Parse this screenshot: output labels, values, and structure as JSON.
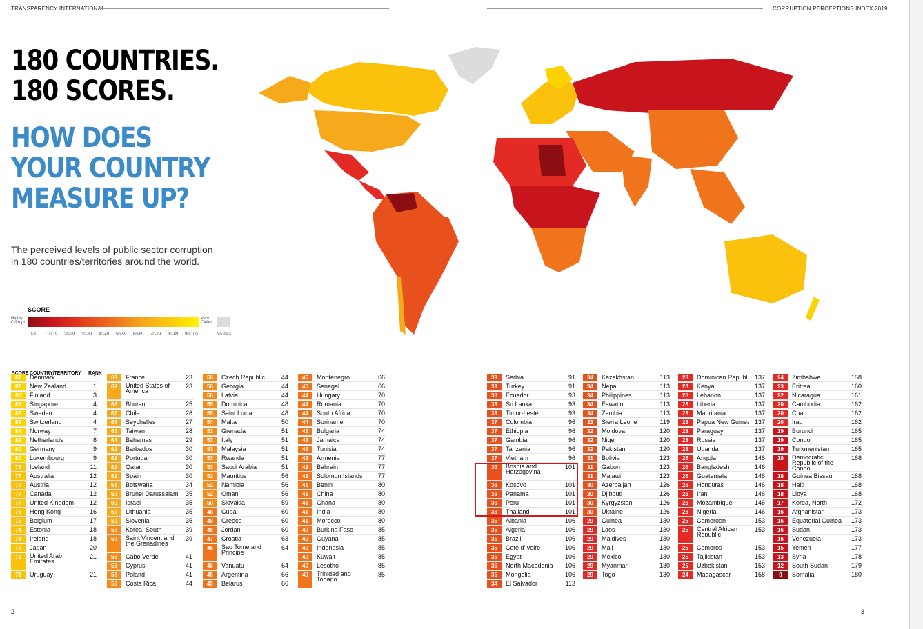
{
  "header": {
    "left": "TRANSPARENCY INTERNATIONAL",
    "right": "CORRUPTION PERCEPTIONS INDEX 2019"
  },
  "headline": {
    "line1": "180 COUNTRIES.",
    "line2": "180 SCORES."
  },
  "subhead": {
    "line1": "HOW DOES",
    "line2": "YOUR COUNTRY",
    "line3": "MEASURE UP?"
  },
  "intro": {
    "line1": "The perceived levels of public sector corruption",
    "line2": "in 180 countries/territories around the world."
  },
  "legend": {
    "title": "SCORE",
    "left_end": "Highly Corrupt",
    "right_end": "Very Clean",
    "no_data": "No data",
    "ranges": [
      "0-9",
      "10-19",
      "20-29",
      "30-39",
      "40-49",
      "50-59",
      "60-69",
      "70-79",
      "80-89",
      "90-100"
    ]
  },
  "colors": {
    "s0": "#8c0d12",
    "s1": "#c8141c",
    "s2": "#e32a24",
    "s3": "#e8511e",
    "s4": "#ef741c",
    "s5": "#f58b19",
    "s6": "#f6a91b",
    "s7": "#fbc20d",
    "s8": "#fcd200",
    "nodata": "#dcdcdc",
    "accent": "#3b8bc9"
  },
  "table_header": {
    "score": "SCORE",
    "country": "COUNTRY/TERRITORY",
    "rank": "RANK"
  },
  "columns": [
    [
      {
        "s": 87,
        "n": "Denmark",
        "r": 1
      },
      {
        "s": 87,
        "n": "New Zealand",
        "r": 1
      },
      {
        "s": 86,
        "n": "Finland",
        "r": 3
      },
      {
        "s": 85,
        "n": "Singapore",
        "r": 4
      },
      {
        "s": 85,
        "n": "Sweden",
        "r": 4
      },
      {
        "s": 85,
        "n": "Switzerland",
        "r": 4
      },
      {
        "s": 84,
        "n": "Norway",
        "r": 7
      },
      {
        "s": 82,
        "n": "Netherlands",
        "r": 8
      },
      {
        "s": 80,
        "n": "Germany",
        "r": 9
      },
      {
        "s": 80,
        "n": "Luxembourg",
        "r": 9
      },
      {
        "s": 78,
        "n": "Iceland",
        "r": 11
      },
      {
        "s": 77,
        "n": "Australia",
        "r": 12
      },
      {
        "s": 77,
        "n": "Austria",
        "r": 12
      },
      {
        "s": 77,
        "n": "Canada",
        "r": 12
      },
      {
        "s": 77,
        "n": "United Kingdom",
        "r": 12
      },
      {
        "s": 76,
        "n": "Hong Kong",
        "r": 16
      },
      {
        "s": 75,
        "n": "Belgium",
        "r": 17
      },
      {
        "s": 74,
        "n": "Estonia",
        "r": 18
      },
      {
        "s": 74,
        "n": "Ireland",
        "r": 18
      },
      {
        "s": 73,
        "n": "Japan",
        "r": 20
      },
      {
        "s": 71,
        "n": "United Arab Emirates",
        "r": 21
      },
      {
        "s": 71,
        "n": "Uruguay",
        "r": 21
      }
    ],
    [
      {
        "s": 69,
        "n": "France",
        "r": 23
      },
      {
        "s": 69,
        "n": "United States of America",
        "r": 23
      },
      {
        "s": 68,
        "n": "Bhutan",
        "r": 25
      },
      {
        "s": 67,
        "n": "Chile",
        "r": 26
      },
      {
        "s": 66,
        "n": "Seychelles",
        "r": 27
      },
      {
        "s": 65,
        "n": "Taiwan",
        "r": 28
      },
      {
        "s": 64,
        "n": "Bahamas",
        "r": 29
      },
      {
        "s": 62,
        "n": "Barbados",
        "r": 30
      },
      {
        "s": 62,
        "n": "Portugal",
        "r": 30
      },
      {
        "s": 62,
        "n": "Qatar",
        "r": 30
      },
      {
        "s": 62,
        "n": "Spain",
        "r": 30
      },
      {
        "s": 61,
        "n": "Botswana",
        "r": 34
      },
      {
        "s": 60,
        "n": "Brunei Darussalam",
        "r": 35
      },
      {
        "s": 60,
        "n": "Israel",
        "r": 35
      },
      {
        "s": 60,
        "n": "Lithuania",
        "r": 35
      },
      {
        "s": 60,
        "n": "Slovenia",
        "r": 35
      },
      {
        "s": 59,
        "n": "Korea, South",
        "r": 39
      },
      {
        "s": 59,
        "n": "Saint Vincent and the Grenadines",
        "r": 39
      },
      {
        "s": 58,
        "n": "Cabo Verde",
        "r": 41
      },
      {
        "s": 58,
        "n": "Cyprus",
        "r": 41
      },
      {
        "s": 58,
        "n": "Poland",
        "r": 41
      },
      {
        "s": 56,
        "n": "Costa Rica",
        "r": 44
      }
    ],
    [
      {
        "s": 56,
        "n": "Czech Republic",
        "r": 44
      },
      {
        "s": 56,
        "n": "Georgia",
        "r": 44
      },
      {
        "s": 56,
        "n": "Latvia",
        "r": 44
      },
      {
        "s": 55,
        "n": "Dominica",
        "r": 48
      },
      {
        "s": 55,
        "n": "Saint Lucia",
        "r": 48
      },
      {
        "s": 54,
        "n": "Malta",
        "r": 50
      },
      {
        "s": 53,
        "n": "Grenada",
        "r": 51
      },
      {
        "s": 53,
        "n": "Italy",
        "r": 51
      },
      {
        "s": 53,
        "n": "Malaysia",
        "r": 51
      },
      {
        "s": 53,
        "n": "Rwanda",
        "r": 51
      },
      {
        "s": 53,
        "n": "Saudi Arabia",
        "r": 51
      },
      {
        "s": 52,
        "n": "Mauritius",
        "r": 56
      },
      {
        "s": 52,
        "n": "Namibia",
        "r": 56
      },
      {
        "s": 52,
        "n": "Oman",
        "r": 56
      },
      {
        "s": 50,
        "n": "Slovakia",
        "r": 59
      },
      {
        "s": 48,
        "n": "Cuba",
        "r": 60
      },
      {
        "s": 48,
        "n": "Greece",
        "r": 60
      },
      {
        "s": 48,
        "n": "Jordan",
        "r": 60
      },
      {
        "s": 47,
        "n": "Croatia",
        "r": 63
      },
      {
        "s": 46,
        "n": "Sao Tome and Principe",
        "r": 64
      },
      {
        "s": 46,
        "n": "Vanuatu",
        "r": 64
      },
      {
        "s": 45,
        "n": "Argentina",
        "r": 66
      },
      {
        "s": 45,
        "n": "Belarus",
        "r": 66
      }
    ],
    [
      {
        "s": 45,
        "n": "Montenegro",
        "r": 66
      },
      {
        "s": 45,
        "n": "Senegal",
        "r": 66
      },
      {
        "s": 44,
        "n": "Hungary",
        "r": 70
      },
      {
        "s": 44,
        "n": "Romania",
        "r": 70
      },
      {
        "s": 44,
        "n": "South Africa",
        "r": 70
      },
      {
        "s": 44,
        "n": "Suriname",
        "r": 70
      },
      {
        "s": 43,
        "n": "Bulgaria",
        "r": 74
      },
      {
        "s": 43,
        "n": "Jamaica",
        "r": 74
      },
      {
        "s": 43,
        "n": "Tunisia",
        "r": 74
      },
      {
        "s": 42,
        "n": "Armenia",
        "r": 77
      },
      {
        "s": 42,
        "n": "Bahrain",
        "r": 77
      },
      {
        "s": 42,
        "n": "Solomon Islands",
        "r": 77
      },
      {
        "s": 41,
        "n": "Benin",
        "r": 80
      },
      {
        "s": 41,
        "n": "China",
        "r": 80
      },
      {
        "s": 41,
        "n": "Ghana",
        "r": 80
      },
      {
        "s": 41,
        "n": "India",
        "r": 80
      },
      {
        "s": 41,
        "n": "Morocco",
        "r": 80
      },
      {
        "s": 40,
        "n": "Burkina Faso",
        "r": 85
      },
      {
        "s": 40,
        "n": "Guyana",
        "r": 85
      },
      {
        "s": 40,
        "n": "Indonesia",
        "r": 85
      },
      {
        "s": 40,
        "n": "Kuwait",
        "r": 85
      },
      {
        "s": 40,
        "n": "Lesotho",
        "r": 85
      },
      {
        "s": 40,
        "n": "Trinidad and Tobago",
        "r": 85
      }
    ],
    [
      {
        "s": 39,
        "n": "Serbia",
        "r": 91
      },
      {
        "s": 39,
        "n": "Turkey",
        "r": 91
      },
      {
        "s": 38,
        "n": "Ecuador",
        "r": 93
      },
      {
        "s": 38,
        "n": "Sri Lanka",
        "r": 93
      },
      {
        "s": 38,
        "n": "Timor-Leste",
        "r": 93
      },
      {
        "s": 37,
        "n": "Colombia",
        "r": 96
      },
      {
        "s": 37,
        "n": "Ethiopia",
        "r": 96
      },
      {
        "s": 37,
        "n": "Gambia",
        "r": 96
      },
      {
        "s": 37,
        "n": "Tanzania",
        "r": 96
      },
      {
        "s": 37,
        "n": "Vietnam",
        "r": 96
      },
      {
        "s": 36,
        "n": "Bosnia and Herzegovina",
        "r": 101
      },
      {
        "s": 36,
        "n": "Kosovo",
        "r": 101
      },
      {
        "s": 36,
        "n": "Panama",
        "r": 101
      },
      {
        "s": 36,
        "n": "Peru",
        "r": 101
      },
      {
        "s": 36,
        "n": "Thailand",
        "r": 101
      },
      {
        "s": 35,
        "n": "Albania",
        "r": 106
      },
      {
        "s": 35,
        "n": "Algeria",
        "r": 106
      },
      {
        "s": 35,
        "n": "Brazil",
        "r": 106
      },
      {
        "s": 35,
        "n": "Cote d'Ivoire",
        "r": 106
      },
      {
        "s": 35,
        "n": "Egypt",
        "r": 106
      },
      {
        "s": 35,
        "n": "North Macedonia",
        "r": 106
      },
      {
        "s": 35,
        "n": "Mongolia",
        "r": 106
      },
      {
        "s": 34,
        "n": "El Salvador",
        "r": 113
      }
    ],
    [
      {
        "s": 34,
        "n": "Kazakhstan",
        "r": 113
      },
      {
        "s": 34,
        "n": "Nepal",
        "r": 113
      },
      {
        "s": 34,
        "n": "Philippines",
        "r": 113
      },
      {
        "s": 34,
        "n": "Eswatini",
        "r": 113
      },
      {
        "s": 34,
        "n": "Zambia",
        "r": 113
      },
      {
        "s": 33,
        "n": "Sierra Leone",
        "r": 119
      },
      {
        "s": 32,
        "n": "Moldova",
        "r": 120
      },
      {
        "s": 32,
        "n": "Niger",
        "r": 120
      },
      {
        "s": 32,
        "n": "Pakistan",
        "r": 120
      },
      {
        "s": 31,
        "n": "Bolivia",
        "r": 123
      },
      {
        "s": 31,
        "n": "Gabon",
        "r": 123
      },
      {
        "s": 31,
        "n": "Malawi",
        "r": 123
      },
      {
        "s": 30,
        "n": "Azerbaijan",
        "r": 126
      },
      {
        "s": 30,
        "n": "Djibouti",
        "r": 126
      },
      {
        "s": 30,
        "n": "Kyrgyzstan",
        "r": 126
      },
      {
        "s": 30,
        "n": "Ukraine",
        "r": 126
      },
      {
        "s": 29,
        "n": "Guinea",
        "r": 130
      },
      {
        "s": 29,
        "n": "Laos",
        "r": 130
      },
      {
        "s": 29,
        "n": "Maldives",
        "r": 130
      },
      {
        "s": 29,
        "n": "Mali",
        "r": 130
      },
      {
        "s": 29,
        "n": "Mexico",
        "r": 130
      },
      {
        "s": 29,
        "n": "Myanmar",
        "r": 130
      },
      {
        "s": 29,
        "n": "Togo",
        "r": 130
      }
    ],
    [
      {
        "s": 28,
        "n": "Dominican Republic",
        "r": 137
      },
      {
        "s": 28,
        "n": "Kenya",
        "r": 137
      },
      {
        "s": 28,
        "n": "Lebanon",
        "r": 137
      },
      {
        "s": 28,
        "n": "Liberia",
        "r": 137
      },
      {
        "s": 28,
        "n": "Mauritania",
        "r": 137
      },
      {
        "s": 28,
        "n": "Papua New Guinea",
        "r": 137
      },
      {
        "s": 28,
        "n": "Paraguay",
        "r": 137
      },
      {
        "s": 28,
        "n": "Russia",
        "r": 137
      },
      {
        "s": 28,
        "n": "Uganda",
        "r": 137
      },
      {
        "s": 26,
        "n": "Angola",
        "r": 146
      },
      {
        "s": 26,
        "n": "Bangladesh",
        "r": 146
      },
      {
        "s": 26,
        "n": "Guatemala",
        "r": 146
      },
      {
        "s": 26,
        "n": "Honduras",
        "r": 146
      },
      {
        "s": 26,
        "n": "Iran",
        "r": 146
      },
      {
        "s": 26,
        "n": "Mozambique",
        "r": 146
      },
      {
        "s": 26,
        "n": "Nigeria",
        "r": 146
      },
      {
        "s": 25,
        "n": "Cameroon",
        "r": 153
      },
      {
        "s": 25,
        "n": "Central African Republic",
        "r": 153
      },
      {
        "s": 25,
        "n": "Comoros",
        "r": 153
      },
      {
        "s": 25,
        "n": "Tajikistan",
        "r": 153
      },
      {
        "s": 25,
        "n": "Uzbekistan",
        "r": 153
      },
      {
        "s": 24,
        "n": "Madagascar",
        "r": 158
      }
    ],
    [
      {
        "s": 24,
        "n": "Zimbabwe",
        "r": 158
      },
      {
        "s": 23,
        "n": "Eritrea",
        "r": 160
      },
      {
        "s": 22,
        "n": "Nicaragua",
        "r": 161
      },
      {
        "s": 20,
        "n": "Cambodia",
        "r": 162
      },
      {
        "s": 20,
        "n": "Chad",
        "r": 162
      },
      {
        "s": 20,
        "n": "Iraq",
        "r": 162
      },
      {
        "s": 19,
        "n": "Burundi",
        "r": 165
      },
      {
        "s": 19,
        "n": "Congo",
        "r": 165
      },
      {
        "s": 19,
        "n": "Turkmenistan",
        "r": 165
      },
      {
        "s": 18,
        "n": "Democratic Republic of the Congo",
        "r": 168
      },
      {
        "s": 18,
        "n": "Guinea Bissau",
        "r": 168
      },
      {
        "s": 18,
        "n": "Haiti",
        "r": 168
      },
      {
        "s": 18,
        "n": "Libya",
        "r": 168
      },
      {
        "s": 17,
        "n": "Korea, North",
        "r": 172
      },
      {
        "s": 16,
        "n": "Afghanistan",
        "r": 173
      },
      {
        "s": 16,
        "n": "Equatorial Guinea",
        "r": 173
      },
      {
        "s": 16,
        "n": "Sudan",
        "r": 173
      },
      {
        "s": 16,
        "n": "Venezuela",
        "r": 173
      },
      {
        "s": 15,
        "n": "Yemen",
        "r": 177
      },
      {
        "s": 13,
        "n": "Syria",
        "r": 178
      },
      {
        "s": 12,
        "n": "South Sudan",
        "r": 179
      },
      {
        "s": 9,
        "n": "Somalia",
        "r": 180
      }
    ]
  ],
  "page_numbers": {
    "left": "2",
    "right": "3"
  }
}
